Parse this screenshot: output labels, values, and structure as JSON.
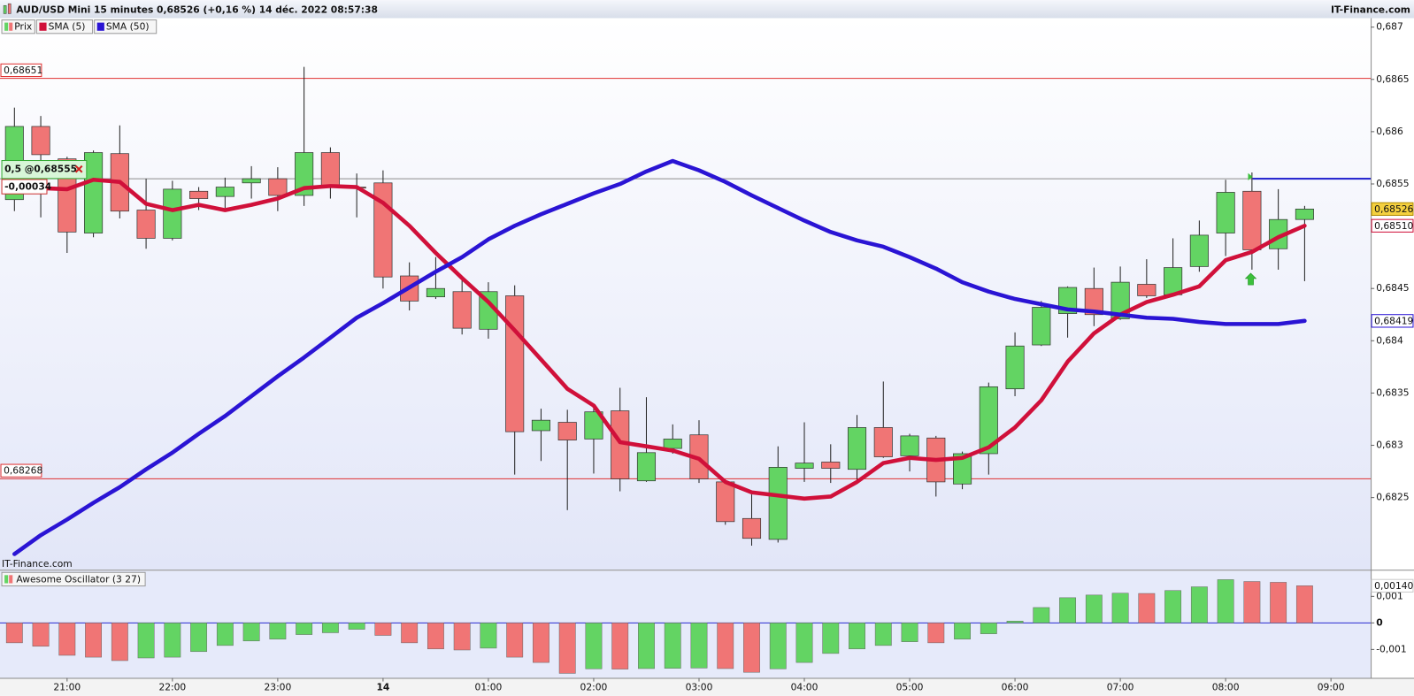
{
  "chart_data": [
    {
      "type": "candlestick",
      "title": "AUD/USD Mini 15 minutes 0,68526 (+0,16 %) 14 déc. 2022 08:57:38",
      "source": "IT-Finance.com",
      "watermark": "IT-Finance.com",
      "legend_name": "Prix",
      "up_color": "#63d463",
      "down_color": "#f07575",
      "open": [
        0.68535,
        0.68605,
        0.68574,
        0.68503,
        0.68579,
        0.68525,
        0.68498,
        0.68543,
        0.68538,
        0.68551,
        0.68555,
        0.68539,
        0.6858,
        0.68547,
        0.68551,
        0.68462,
        0.68442,
        0.68447,
        0.68411,
        0.68443,
        0.68314,
        0.68322,
        0.68306,
        0.68333,
        0.68266,
        0.68297,
        0.6831,
        0.68265,
        0.6823,
        0.6821,
        0.68278,
        0.68284,
        0.68277,
        0.68317,
        0.6829,
        0.68307,
        0.68263,
        0.68292,
        0.68354,
        0.68396,
        0.68426,
        0.6845,
        0.68421,
        0.68454,
        0.68444,
        0.68471,
        0.68503,
        0.68543,
        0.68488,
        0.68516
      ],
      "high": [
        0.68623,
        0.68615,
        0.68576,
        0.68582,
        0.68606,
        0.68555,
        0.68553,
        0.68547,
        0.68556,
        0.68567,
        0.68566,
        0.68662,
        0.68585,
        0.6856,
        0.68563,
        0.68475,
        0.6848,
        0.68462,
        0.68456,
        0.68453,
        0.68335,
        0.68334,
        0.68335,
        0.68355,
        0.68346,
        0.6832,
        0.68324,
        0.68267,
        0.68253,
        0.68299,
        0.68322,
        0.68301,
        0.68329,
        0.68361,
        0.68311,
        0.68309,
        0.68294,
        0.6836,
        0.68408,
        0.68438,
        0.68452,
        0.6847,
        0.68471,
        0.68478,
        0.68498,
        0.68515,
        0.68554,
        0.68561,
        0.68545,
        0.68529
      ],
      "low": [
        0.68524,
        0.68518,
        0.68484,
        0.68499,
        0.68517,
        0.68488,
        0.68496,
        0.68525,
        0.68527,
        0.68536,
        0.68524,
        0.68529,
        0.68536,
        0.68518,
        0.6845,
        0.68429,
        0.6844,
        0.68406,
        0.68402,
        0.68272,
        0.68285,
        0.68238,
        0.68273,
        0.68256,
        0.68265,
        0.68292,
        0.68264,
        0.68224,
        0.68204,
        0.68207,
        0.68265,
        0.68264,
        0.68266,
        0.68288,
        0.68275,
        0.68251,
        0.68258,
        0.68272,
        0.68347,
        0.68395,
        0.68403,
        0.68414,
        0.6842,
        0.68441,
        0.68443,
        0.68466,
        0.68481,
        0.68468,
        0.68468,
        0.68457
      ],
      "close": [
        0.68605,
        0.68578,
        0.68504,
        0.6858,
        0.68524,
        0.68498,
        0.68545,
        0.68536,
        0.68547,
        0.68555,
        0.68539,
        0.6858,
        0.68547,
        0.68546,
        0.68461,
        0.68438,
        0.6845,
        0.68412,
        0.68447,
        0.68313,
        0.68324,
        0.68305,
        0.68332,
        0.68268,
        0.68293,
        0.68306,
        0.68268,
        0.68227,
        0.68211,
        0.68279,
        0.68283,
        0.68278,
        0.68317,
        0.68289,
        0.68309,
        0.68265,
        0.68292,
        0.68356,
        0.68395,
        0.68432,
        0.68451,
        0.68425,
        0.68456,
        0.68443,
        0.6847,
        0.68501,
        0.68542,
        0.68487,
        0.68516,
        0.68526
      ],
      "close_labels": [
        null,
        null,
        null,
        null,
        null,
        null,
        null,
        null,
        null,
        null,
        null,
        null,
        null,
        null,
        null,
        null,
        null,
        null,
        null,
        null,
        null,
        null,
        null,
        null,
        null,
        null,
        null,
        null,
        null,
        null,
        null,
        null,
        null,
        null,
        null,
        null,
        null,
        null,
        null,
        null,
        null,
        null,
        null,
        null,
        null,
        null,
        null,
        null,
        null,
        "0,68526"
      ],
      "series": [
        {
          "name": "SMA (5)",
          "color": "#d0103a",
          "values": [
            0.68549,
            0.68546,
            0.68545,
            0.68554,
            0.68552,
            0.68531,
            0.68525,
            0.6853,
            0.68525,
            0.6853,
            0.68536,
            0.68546,
            0.68548,
            0.68547,
            0.68532,
            0.6851,
            0.68484,
            0.6846,
            0.68437,
            0.6841,
            0.68382,
            0.68354,
            0.68338,
            0.68303,
            0.68299,
            0.68295,
            0.68287,
            0.68265,
            0.68255,
            0.68252,
            0.68249,
            0.68251,
            0.68265,
            0.68283,
            0.68288,
            0.68286,
            0.68288,
            0.68298,
            0.68317,
            0.68343,
            0.6838,
            0.68407,
            0.68425,
            0.68437,
            0.68444,
            0.68452,
            0.68477,
            0.68485,
            0.68499,
            0.6851
          ],
          "value_labels": [
            null,
            null,
            null,
            null,
            null,
            null,
            null,
            null,
            null,
            null,
            null,
            null,
            null,
            null,
            null,
            null,
            null,
            null,
            null,
            null,
            null,
            null,
            null,
            null,
            null,
            null,
            null,
            null,
            null,
            null,
            null,
            null,
            null,
            null,
            null,
            null,
            null,
            null,
            null,
            null,
            null,
            null,
            null,
            null,
            null,
            null,
            null,
            null,
            null,
            "0,68510"
          ]
        },
        {
          "name": "SMA (50)",
          "color": "#2a14d4",
          "values": [
            0.68196,
            0.68214,
            0.68229,
            0.68245,
            0.6826,
            0.68277,
            0.68293,
            0.68311,
            0.68328,
            0.68347,
            0.68366,
            0.68384,
            0.68403,
            0.68422,
            0.68436,
            0.68451,
            0.68466,
            0.6848,
            0.68497,
            0.6851,
            0.68521,
            0.68531,
            0.68541,
            0.6855,
            0.68562,
            0.68572,
            0.68563,
            0.68552,
            0.68539,
            0.68527,
            0.68515,
            0.68504,
            0.68496,
            0.6849,
            0.6848,
            0.68469,
            0.68456,
            0.68447,
            0.6844,
            0.68435,
            0.6843,
            0.68428,
            0.68425,
            0.68422,
            0.68421,
            0.68418,
            0.68416,
            0.68416,
            0.68416,
            0.68419
          ],
          "value_labels": [
            null,
            null,
            null,
            null,
            null,
            null,
            null,
            null,
            null,
            null,
            null,
            null,
            null,
            null,
            null,
            null,
            null,
            null,
            null,
            null,
            null,
            null,
            null,
            null,
            null,
            null,
            null,
            null,
            null,
            null,
            null,
            null,
            null,
            null,
            null,
            null,
            null,
            null,
            null,
            null,
            null,
            null,
            null,
            null,
            null,
            null,
            null,
            null,
            null,
            "0,68419"
          ]
        }
      ],
      "levels": [
        {
          "value": 0.68651,
          "label": "0,68651",
          "color": "#e03030"
        },
        {
          "value": 0.68268,
          "label": "0,68268",
          "color": "#e03030"
        }
      ],
      "fib_level": {
        "value": 0.68555,
        "label": "0,5 @0,68555"
      },
      "fib_change": "-0,00034",
      "ylim": [
        0.68181,
        0.687086
      ],
      "yticks": [
        {
          "value": 0.687,
          "label": "0,687"
        },
        {
          "value": 0.6865,
          "label": "0,6865"
        },
        {
          "value": 0.686,
          "label": "0,686"
        },
        {
          "value": 0.6855,
          "label": "0,6855"
        },
        {
          "value": 0.6845,
          "label": "0,6845"
        },
        {
          "value": 0.684,
          "label": "0,684"
        },
        {
          "value": 0.6835,
          "label": "0,6835"
        },
        {
          "value": 0.683,
          "label": "0,683"
        },
        {
          "value": 0.6825,
          "label": "0,6825"
        }
      ],
      "xlim": [
        -0.548,
        51.51
      ],
      "xticks": [
        {
          "value": 2,
          "label": "21:00"
        },
        {
          "value": 6,
          "label": "22:00"
        },
        {
          "value": 10,
          "label": "23:00"
        },
        {
          "value": 14,
          "label": "14"
        },
        {
          "value": 18,
          "label": "01:00"
        },
        {
          "value": 22,
          "label": "02:00"
        },
        {
          "value": 26,
          "label": "03:00"
        },
        {
          "value": 30,
          "label": "04:00"
        },
        {
          "value": 34,
          "label": "05:00"
        },
        {
          "value": 38,
          "label": "06:00"
        },
        {
          "value": 42,
          "label": "07:00"
        },
        {
          "value": 46,
          "label": "08:00"
        },
        {
          "value": 50,
          "label": "09:00"
        }
      ]
    },
    {
      "type": "bar",
      "up_color": "#63d463",
      "down_color": "#f07575",
      "zero_color": "#2a2ad0",
      "series": [
        {
          "name": "Awesome Oscillator (3 27)",
          "values": [
            -0.00075,
            -0.00088,
            -0.00122,
            -0.00129,
            -0.00142,
            -0.00132,
            -0.00129,
            -0.00108,
            -0.00085,
            -0.00068,
            -0.00061,
            -0.00044,
            -0.00037,
            -0.00024,
            -0.00047,
            -0.00075,
            -0.00098,
            -0.00102,
            -0.00095,
            -0.00129,
            -0.00149,
            -0.0019,
            -0.00173,
            -0.00174,
            -0.00172,
            -0.00171,
            -0.0017,
            -0.00172,
            -0.00186,
            -0.00173,
            -0.00149,
            -0.00115,
            -0.00098,
            -0.00085,
            -0.00071,
            -0.00075,
            -0.00061,
            -0.00041,
            7e-05,
            0.00058,
            0.00095,
            0.00105,
            0.00112,
            0.00111,
            0.00122,
            0.00136,
            0.00163,
            0.00156,
            0.00153,
            0.0014
          ],
          "value_labels": [
            null,
            null,
            null,
            null,
            null,
            null,
            null,
            null,
            null,
            null,
            null,
            null,
            null,
            null,
            null,
            null,
            null,
            null,
            null,
            null,
            null,
            null,
            null,
            null,
            null,
            null,
            null,
            null,
            null,
            null,
            null,
            null,
            null,
            null,
            null,
            null,
            null,
            null,
            null,
            null,
            null,
            null,
            null,
            null,
            null,
            null,
            null,
            null,
            null,
            "0,00140"
          ]
        }
      ],
      "ylim": [
        -0.00207,
        0.00197
      ],
      "yticks": [
        {
          "value": 0.001,
          "label": "0,001"
        },
        0,
        {
          "value": -0.001,
          "label": "-0,001"
        }
      ]
    }
  ]
}
